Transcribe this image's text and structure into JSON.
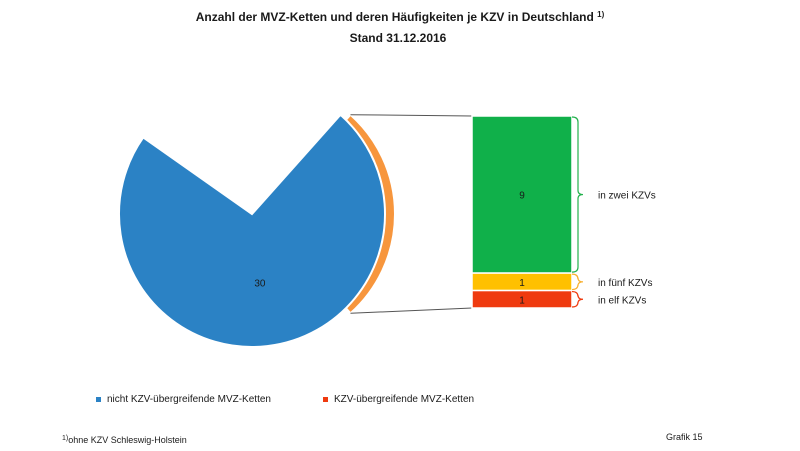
{
  "chart_data": {
    "type": "bar-of-pie",
    "title_line1": "Anzahl der MVZ-Ketten und deren Häufigkeiten je KZV in Deutschland",
    "title_sup": "1)",
    "title_line2": "Stand 31.12.2016",
    "pie": [
      {
        "label": "30",
        "value": 30,
        "color": "#2b82c5"
      },
      {
        "label": "11",
        "value": 11,
        "color": "#f7963d"
      }
    ],
    "bar": [
      {
        "label": "9",
        "value": 9,
        "color": "#10b04a",
        "annotation": "in zwei KZVs"
      },
      {
        "label": "1",
        "value": 1,
        "color": "#ffc000",
        "annotation": "in fünf KZVs"
      },
      {
        "label": "1",
        "value": 1,
        "color": "#ef3a0f",
        "annotation": "in elf KZVs"
      }
    ],
    "legend": [
      {
        "text": "nicht KZV-übergreifende MVZ-Ketten",
        "color": "#2b82c5"
      },
      {
        "text": "KZV-übergreifende MVZ-Ketten",
        "color": "#ef3a0f"
      }
    ],
    "colors": {
      "bracket": "#22b14c",
      "bracket_small": "#f7963d",
      "connector": "#555555"
    }
  },
  "footnote": {
    "sup": "1)",
    "text": "ohne KZV Schleswig-Holstein"
  },
  "figure_label": "Grafik 15"
}
